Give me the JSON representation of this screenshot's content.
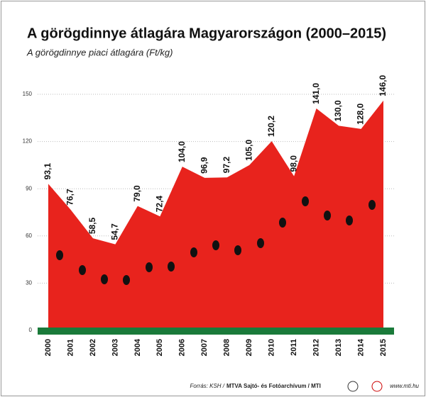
{
  "chart_data": {
    "type": "area",
    "title": "A görögdinnye átlagára Magyarországon (2000–2015)",
    "subtitle": "A görögdinnye piaci átlagára (Ft/kg)",
    "categories": [
      "2000",
      "2001",
      "2002",
      "2003",
      "2004",
      "2005",
      "2006",
      "2007",
      "2008",
      "2009",
      "2010",
      "2011",
      "2012",
      "2013",
      "2014",
      "2015"
    ],
    "values": [
      93.1,
      76.7,
      58.5,
      54.7,
      79.0,
      72.4,
      104.0,
      96.9,
      97.2,
      105.0,
      120.2,
      98.0,
      141.0,
      130.0,
      128.0,
      146.0
    ],
    "value_labels": [
      "93,1",
      "76,7",
      "58,5",
      "54,7",
      "79,0",
      "72,4",
      "104,0",
      "96,9",
      "97,2",
      "105,0",
      "120,2",
      "98,0",
      "141,0",
      "130,0",
      "128,0",
      "146,0"
    ],
    "color": "#e8231d",
    "ylim": [
      0,
      150
    ],
    "yticks": [
      0,
      30,
      60,
      90,
      120,
      150
    ],
    "grid": true,
    "source": "Forrás: KSH /",
    "agency": "MTVA Sajtó- és Fotóarchívum / MTI",
    "url": "www.mti.hu"
  }
}
